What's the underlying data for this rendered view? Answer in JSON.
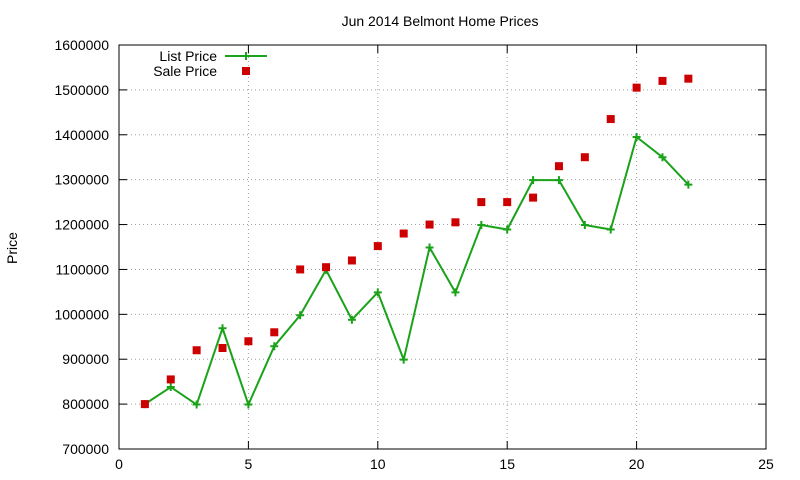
{
  "chart_data": {
    "type": "line",
    "title": "Jun 2014 Belmont Home Prices",
    "xlabel": "",
    "ylabel": "Price",
    "xlim": [
      0,
      25
    ],
    "ylim": [
      700000,
      1600000
    ],
    "xticks": [
      0,
      5,
      10,
      15,
      20,
      25
    ],
    "yticks": [
      700000,
      800000,
      900000,
      1000000,
      1100000,
      1200000,
      1300000,
      1400000,
      1500000,
      1600000
    ],
    "grid": true,
    "legend_position": "top-left",
    "series": [
      {
        "name": "List Price",
        "style": "line-with-plus-markers",
        "color": "#1aa31a",
        "x": [
          1,
          2,
          3,
          4,
          5,
          6,
          7,
          8,
          9,
          10,
          11,
          12,
          13,
          14,
          15,
          16,
          17,
          18,
          19,
          20,
          21,
          22
        ],
        "y": [
          800000,
          838000,
          799000,
          969000,
          799000,
          929000,
          998000,
          1099000,
          988000,
          1049000,
          899000,
          1149000,
          1049000,
          1199000,
          1189000,
          1299000,
          1299000,
          1199000,
          1189000,
          1395000,
          1350000,
          1289000
        ]
      },
      {
        "name": "Sale Price",
        "style": "square-markers",
        "color": "#cc0000",
        "x": [
          1,
          2,
          3,
          4,
          5,
          6,
          7,
          8,
          9,
          10,
          11,
          12,
          13,
          14,
          15,
          16,
          17,
          18,
          19,
          20,
          21,
          22
        ],
        "y": [
          800000,
          855000,
          920000,
          925000,
          940000,
          960000,
          1100000,
          1105000,
          1120000,
          1152000,
          1180000,
          1200000,
          1205000,
          1250000,
          1250000,
          1260000,
          1330000,
          1350000,
          1435000,
          1505000,
          1520000,
          1525000
        ]
      }
    ]
  }
}
